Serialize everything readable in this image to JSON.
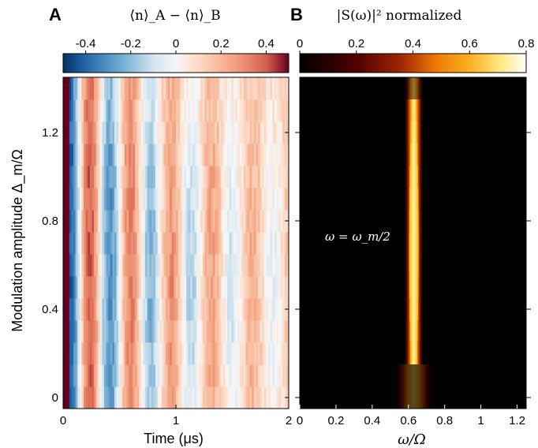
{
  "chart_data": [
    {
      "panel": "A",
      "type": "heatmap",
      "colorbar_title": "⟨n⟩_A − ⟨n⟩_B",
      "colorbar_ticks": [
        "-0.4",
        "-0.2",
        "0",
        "0.2",
        "0.4"
      ],
      "colorbar_range": [
        -0.5,
        0.5
      ],
      "colormap": "diverging blue-white-red",
      "xlabel": "Time (μs)",
      "ylabel": "Modulation amplitude Δ_m/Ω",
      "x_ticks": [
        "0",
        "1",
        "2"
      ],
      "y_ticks": [
        "0",
        "0.4",
        "0.8",
        "1.2"
      ],
      "xlim": [
        0,
        2
      ],
      "ylim": [
        -0.05,
        1.45
      ],
      "description_values": {
        "rows_amplitude": [
          0,
          0.1,
          0.2,
          0.3,
          0.4,
          0.5,
          0.6,
          0.7,
          0.8,
          0.9,
          1.0,
          1.1,
          1.2,
          1.3,
          1.4
        ],
        "oscillation_period_us": 0.36,
        "initial_value": 0.5
      }
    },
    {
      "panel": "B",
      "type": "heatmap",
      "colorbar_title": "|S(ω)|² normalized",
      "colorbar_ticks": [
        "0",
        "0.2",
        "0.4",
        "0.6",
        "0.8"
      ],
      "colorbar_range": [
        0,
        0.8
      ],
      "colormap": "afmhot",
      "xlabel": "ω/Ω",
      "x_ticks": [
        "0",
        "0.2",
        "0.4",
        "0.6",
        "0.8",
        "1",
        "1.2"
      ],
      "xlim": [
        0,
        1.25
      ],
      "ylim": [
        -0.05,
        1.45
      ],
      "annotation": "ω = ω_m/2",
      "peak_frequency": 0.63
    }
  ],
  "labels": {
    "panel_a": "A",
    "panel_b": "B",
    "cb_a_title": "⟨n⟩_A − ⟨n⟩_B",
    "cb_b_title": "|S(ω)|² normalized",
    "x_a_title": "Time (μs)",
    "y_a_title": "Modulation amplitude Δ_m/Ω",
    "x_b_title": "ω/Ω",
    "annotation": "ω = ω_m/2"
  }
}
